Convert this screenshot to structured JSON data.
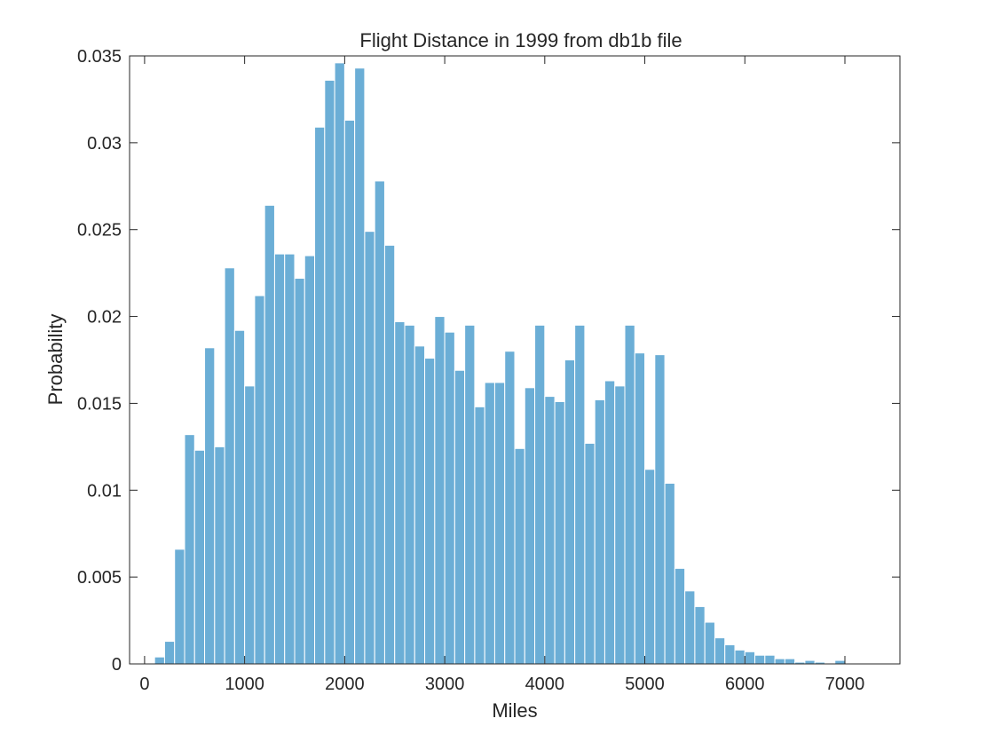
{
  "chart_data": {
    "type": "bar",
    "title": "Flight Distance in 1999 from db1b file",
    "xlabel": "Miles",
    "ylabel": "Probability",
    "xlim": [
      -150,
      7550
    ],
    "ylim": [
      0,
      0.035
    ],
    "xticks": [
      0,
      1000,
      2000,
      3000,
      4000,
      5000,
      6000,
      7000
    ],
    "xtick_labels": [
      "0",
      "1000",
      "2000",
      "3000",
      "4000",
      "5000",
      "6000",
      "7000"
    ],
    "yticks": [
      0,
      0.005,
      0.01,
      0.015,
      0.02,
      0.025,
      0.03,
      0.035
    ],
    "ytick_labels": [
      "0",
      "0.005",
      "0.01",
      "0.015",
      "0.02",
      "0.025",
      "0.03",
      "0.035"
    ],
    "bin_start": 100,
    "bin_width": 100,
    "bar_color": "#6baed6",
    "bar_edge_color": "#ffffff",
    "grid": false,
    "bin_counts_note": null,
    "values": [
      0.0004,
      0.0013,
      0.0066,
      0.0132,
      0.0123,
      0.0182,
      0.0125,
      0.0228,
      0.0192,
      0.016,
      0.0212,
      0.0264,
      0.0236,
      0.0236,
      0.0222,
      0.0235,
      0.0309,
      0.0336,
      0.0346,
      0.0313,
      0.0343,
      0.0249,
      0.0278,
      0.0241,
      0.0197,
      0.0195,
      0.0183,
      0.0176,
      0.02,
      0.0191,
      0.0169,
      0.0195,
      0.0148,
      0.0162,
      0.0162,
      0.018,
      0.0124,
      0.0159,
      0.0195,
      0.0154,
      0.0151,
      0.0175,
      0.0195,
      0.0127,
      0.0152,
      0.0163,
      0.016,
      0.0195,
      0.0179,
      0.0112,
      0.0178,
      0.0104,
      0.0055,
      0.0042,
      0.0033,
      0.0024,
      0.0015,
      0.0011,
      0.0008,
      0.0007,
      0.0005,
      0.0005,
      0.0003,
      0.0003,
      0.0001,
      0.0002,
      0.0001,
      0.0,
      0.0002
    ]
  }
}
